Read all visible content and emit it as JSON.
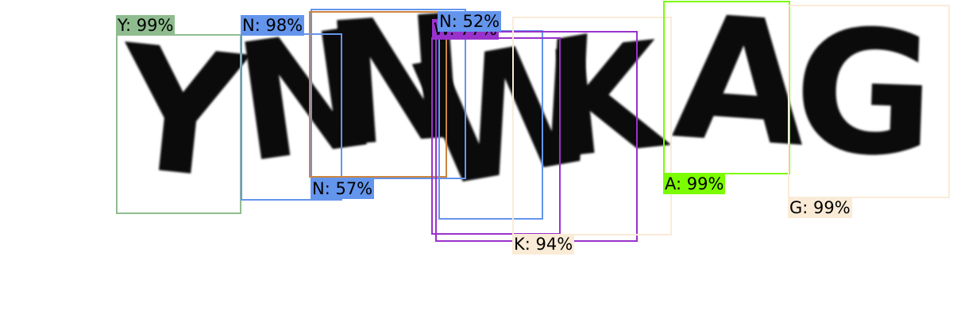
{
  "captcha_text": "YNNWKAG",
  "detections": [
    {
      "label": "Y: 99%",
      "color": "#8fbc8f"
    },
    {
      "label": "N: 98%",
      "color": "#6495ed"
    },
    {
      "label": "N: 57%",
      "color": "#6495ed"
    },
    {
      "label": "",
      "color": "#cd853f"
    },
    {
      "label": "N: 52%",
      "color": "#6495ed"
    },
    {
      "label": "W: 77%",
      "color": "#9932cc"
    },
    {
      "label": "",
      "color": "#9932cc"
    },
    {
      "label": "K: 94%",
      "color": "#faebd7"
    },
    {
      "label": "A: 99%",
      "color": "#7cfc00"
    },
    {
      "label": "G: 99%",
      "color": "#faebd7"
    }
  ]
}
